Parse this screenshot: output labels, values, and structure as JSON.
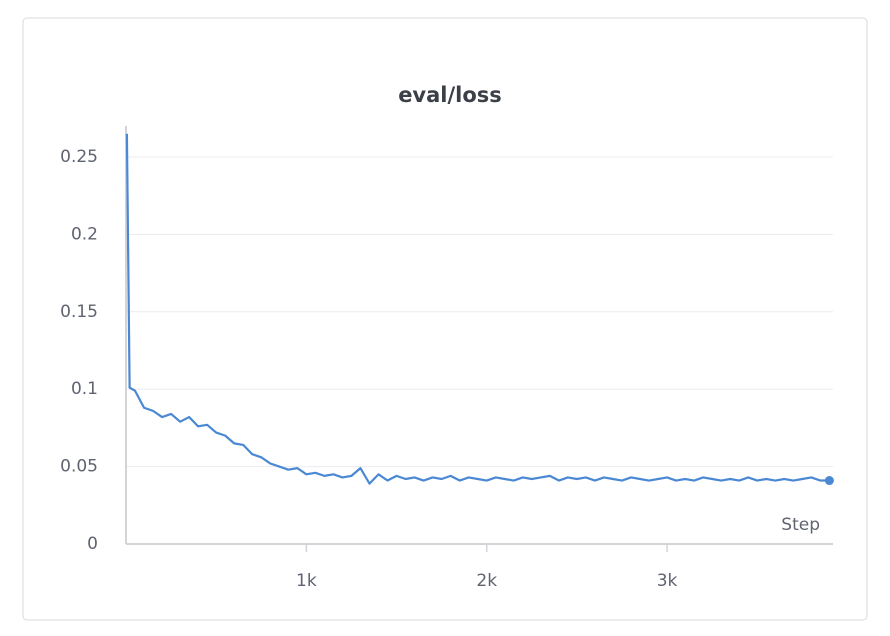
{
  "chart_data": {
    "type": "line",
    "title": "eval/loss",
    "xlabel": "Step",
    "x": [
      5,
      20,
      50,
      100,
      150,
      200,
      250,
      300,
      350,
      400,
      450,
      500,
      550,
      600,
      650,
      700,
      750,
      800,
      850,
      900,
      950,
      1000,
      1050,
      1100,
      1150,
      1200,
      1250,
      1300,
      1350,
      1400,
      1450,
      1500,
      1550,
      1600,
      1650,
      1700,
      1750,
      1800,
      1850,
      1900,
      1950,
      2000,
      2050,
      2100,
      2150,
      2200,
      2250,
      2300,
      2350,
      2400,
      2450,
      2500,
      2550,
      2600,
      2650,
      2700,
      2750,
      2800,
      2850,
      2900,
      2950,
      3000,
      3050,
      3100,
      3150,
      3200,
      3250,
      3300,
      3350,
      3400,
      3450,
      3500,
      3550,
      3600,
      3650,
      3700,
      3750,
      3800,
      3850,
      3900
    ],
    "series": [
      {
        "name": "eval/loss",
        "color": "#4a88d4",
        "values": [
          0.265,
          0.101,
          0.099,
          0.088,
          0.086,
          0.082,
          0.084,
          0.079,
          0.082,
          0.076,
          0.077,
          0.072,
          0.07,
          0.065,
          0.064,
          0.058,
          0.056,
          0.052,
          0.05,
          0.048,
          0.049,
          0.045,
          0.046,
          0.044,
          0.045,
          0.043,
          0.044,
          0.049,
          0.039,
          0.045,
          0.041,
          0.044,
          0.042,
          0.043,
          0.041,
          0.043,
          0.042,
          0.044,
          0.041,
          0.043,
          0.042,
          0.041,
          0.043,
          0.042,
          0.041,
          0.043,
          0.042,
          0.043,
          0.044,
          0.041,
          0.043,
          0.042,
          0.043,
          0.041,
          0.043,
          0.042,
          0.041,
          0.043,
          0.042,
          0.041,
          0.042,
          0.043,
          0.041,
          0.042,
          0.041,
          0.043,
          0.042,
          0.041,
          0.042,
          0.041,
          0.043,
          0.041,
          0.042,
          0.041,
          0.042,
          0.041,
          0.042,
          0.043,
          0.041,
          0.041
        ]
      }
    ],
    "xlim": [
      0,
      3920
    ],
    "ylim": [
      0,
      0.27
    ],
    "xticks": [
      {
        "value": 1000,
        "label": "1k"
      },
      {
        "value": 2000,
        "label": "2k"
      },
      {
        "value": 3000,
        "label": "3k"
      }
    ],
    "yticks": [
      0,
      0.05,
      0.1,
      0.15,
      0.2,
      0.25
    ],
    "grid": true
  }
}
